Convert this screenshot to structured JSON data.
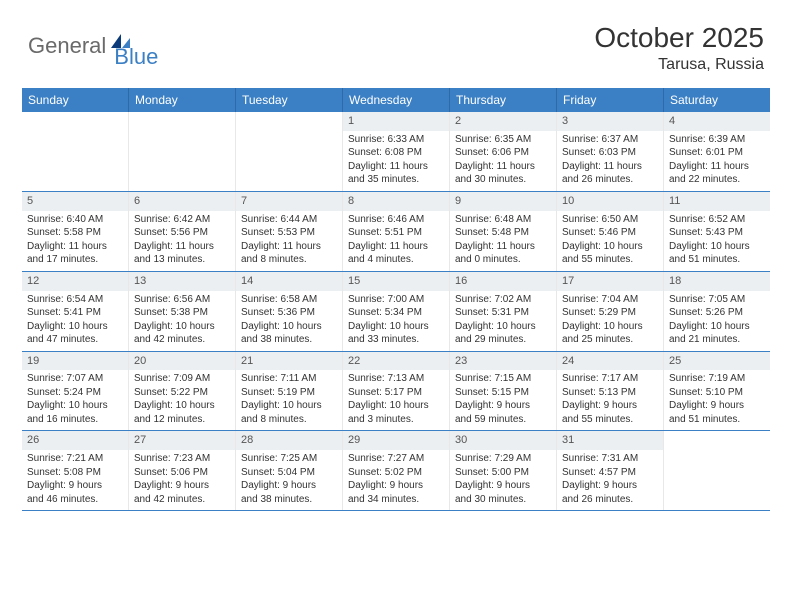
{
  "logo": {
    "part1": "General",
    "part2": "Blue"
  },
  "title": "October 2025",
  "location": "Tarusa, Russia",
  "header_bg": "#3b7fc4",
  "daynum_bg": "#eceff1",
  "row_border": "#3b7fc4",
  "days": [
    "Sunday",
    "Monday",
    "Tuesday",
    "Wednesday",
    "Thursday",
    "Friday",
    "Saturday"
  ],
  "weeks": [
    [
      {
        "n": "",
        "sr": "",
        "ss": "",
        "d1": "",
        "d2": ""
      },
      {
        "n": "",
        "sr": "",
        "ss": "",
        "d1": "",
        "d2": ""
      },
      {
        "n": "",
        "sr": "",
        "ss": "",
        "d1": "",
        "d2": ""
      },
      {
        "n": "1",
        "sr": "Sunrise: 6:33 AM",
        "ss": "Sunset: 6:08 PM",
        "d1": "Daylight: 11 hours",
        "d2": "and 35 minutes."
      },
      {
        "n": "2",
        "sr": "Sunrise: 6:35 AM",
        "ss": "Sunset: 6:06 PM",
        "d1": "Daylight: 11 hours",
        "d2": "and 30 minutes."
      },
      {
        "n": "3",
        "sr": "Sunrise: 6:37 AM",
        "ss": "Sunset: 6:03 PM",
        "d1": "Daylight: 11 hours",
        "d2": "and 26 minutes."
      },
      {
        "n": "4",
        "sr": "Sunrise: 6:39 AM",
        "ss": "Sunset: 6:01 PM",
        "d1": "Daylight: 11 hours",
        "d2": "and 22 minutes."
      }
    ],
    [
      {
        "n": "5",
        "sr": "Sunrise: 6:40 AM",
        "ss": "Sunset: 5:58 PM",
        "d1": "Daylight: 11 hours",
        "d2": "and 17 minutes."
      },
      {
        "n": "6",
        "sr": "Sunrise: 6:42 AM",
        "ss": "Sunset: 5:56 PM",
        "d1": "Daylight: 11 hours",
        "d2": "and 13 minutes."
      },
      {
        "n": "7",
        "sr": "Sunrise: 6:44 AM",
        "ss": "Sunset: 5:53 PM",
        "d1": "Daylight: 11 hours",
        "d2": "and 8 minutes."
      },
      {
        "n": "8",
        "sr": "Sunrise: 6:46 AM",
        "ss": "Sunset: 5:51 PM",
        "d1": "Daylight: 11 hours",
        "d2": "and 4 minutes."
      },
      {
        "n": "9",
        "sr": "Sunrise: 6:48 AM",
        "ss": "Sunset: 5:48 PM",
        "d1": "Daylight: 11 hours",
        "d2": "and 0 minutes."
      },
      {
        "n": "10",
        "sr": "Sunrise: 6:50 AM",
        "ss": "Sunset: 5:46 PM",
        "d1": "Daylight: 10 hours",
        "d2": "and 55 minutes."
      },
      {
        "n": "11",
        "sr": "Sunrise: 6:52 AM",
        "ss": "Sunset: 5:43 PM",
        "d1": "Daylight: 10 hours",
        "d2": "and 51 minutes."
      }
    ],
    [
      {
        "n": "12",
        "sr": "Sunrise: 6:54 AM",
        "ss": "Sunset: 5:41 PM",
        "d1": "Daylight: 10 hours",
        "d2": "and 47 minutes."
      },
      {
        "n": "13",
        "sr": "Sunrise: 6:56 AM",
        "ss": "Sunset: 5:38 PM",
        "d1": "Daylight: 10 hours",
        "d2": "and 42 minutes."
      },
      {
        "n": "14",
        "sr": "Sunrise: 6:58 AM",
        "ss": "Sunset: 5:36 PM",
        "d1": "Daylight: 10 hours",
        "d2": "and 38 minutes."
      },
      {
        "n": "15",
        "sr": "Sunrise: 7:00 AM",
        "ss": "Sunset: 5:34 PM",
        "d1": "Daylight: 10 hours",
        "d2": "and 33 minutes."
      },
      {
        "n": "16",
        "sr": "Sunrise: 7:02 AM",
        "ss": "Sunset: 5:31 PM",
        "d1": "Daylight: 10 hours",
        "d2": "and 29 minutes."
      },
      {
        "n": "17",
        "sr": "Sunrise: 7:04 AM",
        "ss": "Sunset: 5:29 PM",
        "d1": "Daylight: 10 hours",
        "d2": "and 25 minutes."
      },
      {
        "n": "18",
        "sr": "Sunrise: 7:05 AM",
        "ss": "Sunset: 5:26 PM",
        "d1": "Daylight: 10 hours",
        "d2": "and 21 minutes."
      }
    ],
    [
      {
        "n": "19",
        "sr": "Sunrise: 7:07 AM",
        "ss": "Sunset: 5:24 PM",
        "d1": "Daylight: 10 hours",
        "d2": "and 16 minutes."
      },
      {
        "n": "20",
        "sr": "Sunrise: 7:09 AM",
        "ss": "Sunset: 5:22 PM",
        "d1": "Daylight: 10 hours",
        "d2": "and 12 minutes."
      },
      {
        "n": "21",
        "sr": "Sunrise: 7:11 AM",
        "ss": "Sunset: 5:19 PM",
        "d1": "Daylight: 10 hours",
        "d2": "and 8 minutes."
      },
      {
        "n": "22",
        "sr": "Sunrise: 7:13 AM",
        "ss": "Sunset: 5:17 PM",
        "d1": "Daylight: 10 hours",
        "d2": "and 3 minutes."
      },
      {
        "n": "23",
        "sr": "Sunrise: 7:15 AM",
        "ss": "Sunset: 5:15 PM",
        "d1": "Daylight: 9 hours",
        "d2": "and 59 minutes."
      },
      {
        "n": "24",
        "sr": "Sunrise: 7:17 AM",
        "ss": "Sunset: 5:13 PM",
        "d1": "Daylight: 9 hours",
        "d2": "and 55 minutes."
      },
      {
        "n": "25",
        "sr": "Sunrise: 7:19 AM",
        "ss": "Sunset: 5:10 PM",
        "d1": "Daylight: 9 hours",
        "d2": "and 51 minutes."
      }
    ],
    [
      {
        "n": "26",
        "sr": "Sunrise: 7:21 AM",
        "ss": "Sunset: 5:08 PM",
        "d1": "Daylight: 9 hours",
        "d2": "and 46 minutes."
      },
      {
        "n": "27",
        "sr": "Sunrise: 7:23 AM",
        "ss": "Sunset: 5:06 PM",
        "d1": "Daylight: 9 hours",
        "d2": "and 42 minutes."
      },
      {
        "n": "28",
        "sr": "Sunrise: 7:25 AM",
        "ss": "Sunset: 5:04 PM",
        "d1": "Daylight: 9 hours",
        "d2": "and 38 minutes."
      },
      {
        "n": "29",
        "sr": "Sunrise: 7:27 AM",
        "ss": "Sunset: 5:02 PM",
        "d1": "Daylight: 9 hours",
        "d2": "and 34 minutes."
      },
      {
        "n": "30",
        "sr": "Sunrise: 7:29 AM",
        "ss": "Sunset: 5:00 PM",
        "d1": "Daylight: 9 hours",
        "d2": "and 30 minutes."
      },
      {
        "n": "31",
        "sr": "Sunrise: 7:31 AM",
        "ss": "Sunset: 4:57 PM",
        "d1": "Daylight: 9 hours",
        "d2": "and 26 minutes."
      },
      {
        "n": "",
        "sr": "",
        "ss": "",
        "d1": "",
        "d2": ""
      }
    ]
  ]
}
